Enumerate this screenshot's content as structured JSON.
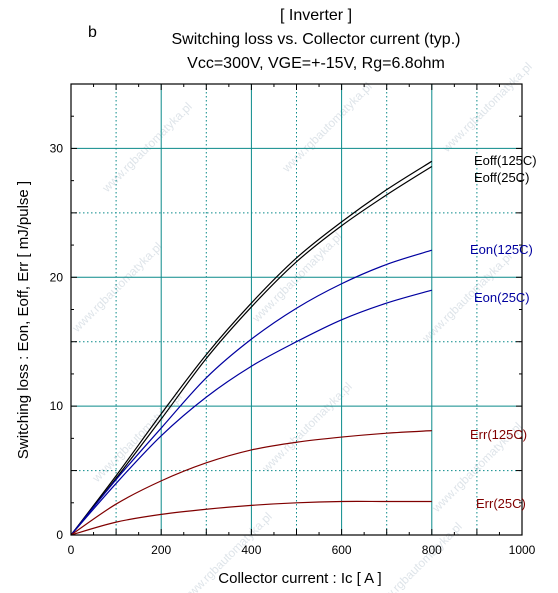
{
  "chart_data": {
    "type": "line",
    "panel_letter": "b",
    "title_lines": [
      "[ Inverter ]",
      "Switching loss  vs.  Collector current  (typ.)",
      "Vcc=300V, VGE=+-15V, Rg=6.8ohm"
    ],
    "xlabel": "Collector current  :  Ic  [ A ]",
    "ylabel": "Switching loss  :  Eon, Eoff, Err  [ mJ/pulse ]",
    "xlim": [
      0,
      1000
    ],
    "ylim": [
      0,
      35
    ],
    "x_ticks": [
      0,
      200,
      400,
      600,
      800,
      1000
    ],
    "y_ticks": [
      0,
      10,
      20,
      30
    ],
    "x_tick_labels": [
      "0",
      "200",
      "400",
      "600",
      "800",
      "1000"
    ],
    "y_tick_labels": [
      "0",
      "10",
      "20",
      "30"
    ],
    "grid": true,
    "watermark_text": "www.rgbautomatyka.pl",
    "series": [
      {
        "name": "Eoff(125C)",
        "color": "#000000",
        "x": [
          0,
          100,
          200,
          300,
          400,
          500,
          600,
          700,
          800
        ],
        "y": [
          0,
          4.6,
          9.4,
          14.0,
          18.0,
          21.5,
          24.3,
          26.8,
          29.0
        ]
      },
      {
        "name": "Eoff(25C)",
        "color": "#000000",
        "x": [
          0,
          100,
          200,
          300,
          400,
          500,
          600,
          700,
          800
        ],
        "y": [
          0,
          4.4,
          9.0,
          13.7,
          17.7,
          21.2,
          24.0,
          26.4,
          28.6
        ]
      },
      {
        "name": "Eon(125C)",
        "color": "#0000a0",
        "x": [
          0,
          100,
          200,
          300,
          400,
          500,
          600,
          700,
          800
        ],
        "y": [
          0,
          4.3,
          8.3,
          12.2,
          15.2,
          17.6,
          19.5,
          21.0,
          22.1
        ]
      },
      {
        "name": "Eon(25C)",
        "color": "#0000a0",
        "x": [
          0,
          100,
          200,
          300,
          400,
          500,
          600,
          700,
          800
        ],
        "y": [
          0,
          4.0,
          7.7,
          10.7,
          13.1,
          15.0,
          16.7,
          18.0,
          19.0
        ]
      },
      {
        "name": "Err(125C)",
        "color": "#800000",
        "x": [
          0,
          100,
          200,
          300,
          400,
          500,
          600,
          700,
          800
        ],
        "y": [
          0,
          2.4,
          4.2,
          5.6,
          6.6,
          7.2,
          7.6,
          7.9,
          8.1
        ]
      },
      {
        "name": "Err(25C)",
        "color": "#800000",
        "x": [
          0,
          100,
          200,
          300,
          400,
          500,
          600,
          700,
          800
        ],
        "y": [
          0,
          1.0,
          1.6,
          2.0,
          2.3,
          2.5,
          2.6,
          2.6,
          2.6
        ]
      }
    ]
  }
}
